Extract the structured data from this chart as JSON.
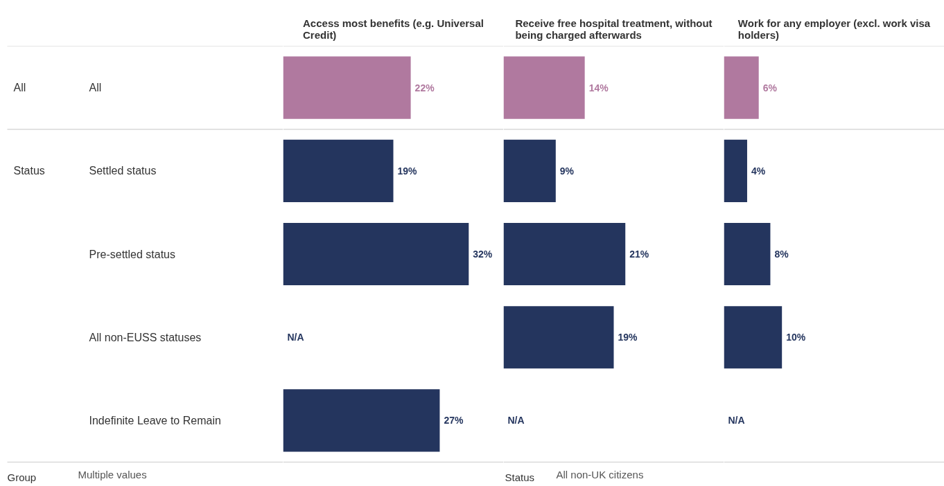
{
  "chart_data": [
    {
      "type": "bar",
      "orientation": "horizontal",
      "title": "Access most benefits (e.g. Universal Credit)",
      "categories": [
        "All",
        "Settled status",
        "Pre-settled status",
        "All non-EUSS statuses",
        "Indefinite Leave to Remain"
      ],
      "values": [
        22,
        19,
        32,
        null,
        27
      ],
      "colors": [
        "#b0799f",
        "#24355e",
        "#24355e",
        "#24355e",
        "#24355e"
      ],
      "value_labels": [
        "22%",
        "19%",
        "32%",
        "N/A",
        "27%"
      ],
      "xlim": [
        0,
        38
      ],
      "tick_labels": "y",
      "annotations": [
        "All",
        "Status",
        "Group",
        "Multiple values"
      ]
    },
    {
      "type": "bar",
      "orientation": "horizontal",
      "title": "Receive free hospital treatment, without being charged afterwards",
      "categories": [
        "All",
        "Settled status",
        "Pre-settled status",
        "All non-EUSS statuses",
        "Indefinite Leave to Remain"
      ],
      "values": [
        14,
        9,
        21,
        19,
        null
      ],
      "colors": [
        "#b0799f",
        "#24355e",
        "#24355e",
        "#24355e",
        "#24355e"
      ],
      "value_labels": [
        "14%",
        "9%",
        "21%",
        "19%",
        "N/A"
      ],
      "xlim": [
        0,
        38
      ],
      "tick_labels": false,
      "annotations": [
        "Status",
        "All non-UK citizens"
      ]
    },
    {
      "type": "bar",
      "orientation": "horizontal",
      "title": "Work for any employer (excl. work visa holders)",
      "categories": [
        "All",
        "Settled status",
        "Pre-settled status",
        "All non-EUSS statuses",
        "Indefinite Leave to Remain"
      ],
      "values": [
        6,
        4,
        8,
        10,
        null
      ],
      "colors": [
        "#b0799f",
        "#24355e",
        "#24355e",
        "#24355e",
        "#24355e"
      ],
      "value_labels": [
        "6%",
        "4%",
        "8%",
        "10%",
        "N/A"
      ],
      "xlim": [
        0,
        38
      ],
      "tick_labels": false
    }
  ]
}
